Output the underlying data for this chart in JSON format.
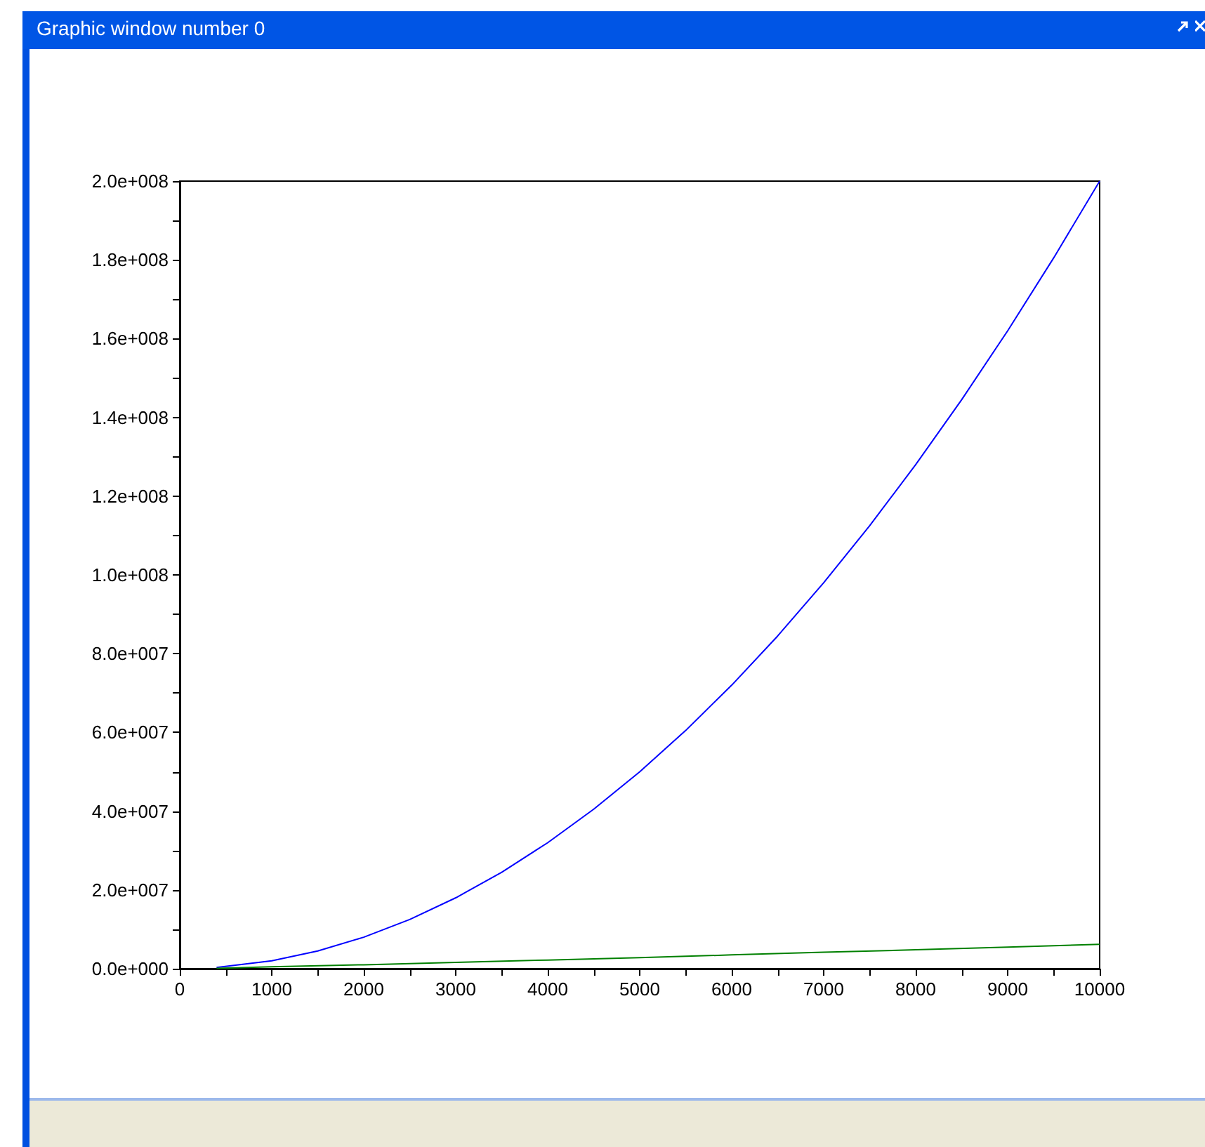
{
  "chart_data": {
    "type": "line",
    "title": "Graphic window number 0",
    "x": [
      400,
      1000,
      2000,
      3000,
      4000,
      5000,
      6000,
      7000,
      8000,
      9000,
      10000
    ],
    "series": [
      {
        "color": "#0000ff",
        "x": [
          400,
          1000,
          1500,
          2000,
          2500,
          3000,
          3500,
          4000,
          4500,
          5000,
          5500,
          6000,
          6500,
          7000,
          7500,
          8000,
          8500,
          9000,
          9500,
          10000
        ],
        "values": [
          300000,
          2000000,
          4500000,
          8000000,
          12500000,
          18000000,
          24500000,
          32000000,
          40500000,
          50000000,
          60500000,
          72000000,
          84500000,
          98000000,
          112500000,
          128000000,
          144500000,
          162000000,
          180500000,
          200000000
        ]
      },
      {
        "color": "#008000",
        "values": [
          100000,
          500000,
          1000000,
          1600000,
          2200000,
          2800000,
          3500000,
          4200000,
          4800000,
          5500000,
          6200000
        ]
      }
    ],
    "xlim": [
      0,
      10000
    ],
    "xticks": [
      0,
      {
        "value": 500,
        "label": null
      },
      1000,
      {
        "value": 1500,
        "label": null
      },
      2000,
      {
        "value": 2500,
        "label": null
      },
      3000,
      {
        "value": 3500,
        "label": null
      },
      4000,
      {
        "value": 4500,
        "label": null
      },
      5000,
      {
        "value": 5500,
        "label": null
      },
      6000,
      {
        "value": 6500,
        "label": null
      },
      7000,
      {
        "value": 7500,
        "label": null
      },
      8000,
      {
        "value": 8500,
        "label": null
      },
      9000,
      {
        "value": 9500,
        "label": null
      },
      10000
    ],
    "ylim": [
      0,
      200000000
    ],
    "yticks": [
      {
        "value": 0,
        "label": "0.0e+000"
      },
      {
        "value": 10000000,
        "label": null
      },
      {
        "value": 20000000,
        "label": "2.0e+007"
      },
      {
        "value": 30000000,
        "label": null
      },
      {
        "value": 40000000,
        "label": "4.0e+007"
      },
      {
        "value": 50000000,
        "label": null
      },
      {
        "value": 60000000,
        "label": "6.0e+007"
      },
      {
        "value": 70000000,
        "label": null
      },
      {
        "value": 80000000,
        "label": "8.0e+007"
      },
      {
        "value": 90000000,
        "label": null
      },
      {
        "value": 100000000,
        "label": "1.0e+008"
      },
      {
        "value": 110000000,
        "label": null
      },
      {
        "value": 120000000,
        "label": "1.2e+008"
      },
      {
        "value": 130000000,
        "label": null
      },
      {
        "value": 140000000,
        "label": "1.4e+008"
      },
      {
        "value": 150000000,
        "label": null
      },
      {
        "value": 160000000,
        "label": "1.6e+008"
      },
      {
        "value": 170000000,
        "label": null
      },
      {
        "value": 180000000,
        "label": "1.8e+008"
      },
      {
        "value": 190000000,
        "label": null
      },
      {
        "value": 200000000,
        "label": "2.0e+008"
      }
    ],
    "grid": false,
    "marker": "none",
    "line_style": "solid"
  }
}
